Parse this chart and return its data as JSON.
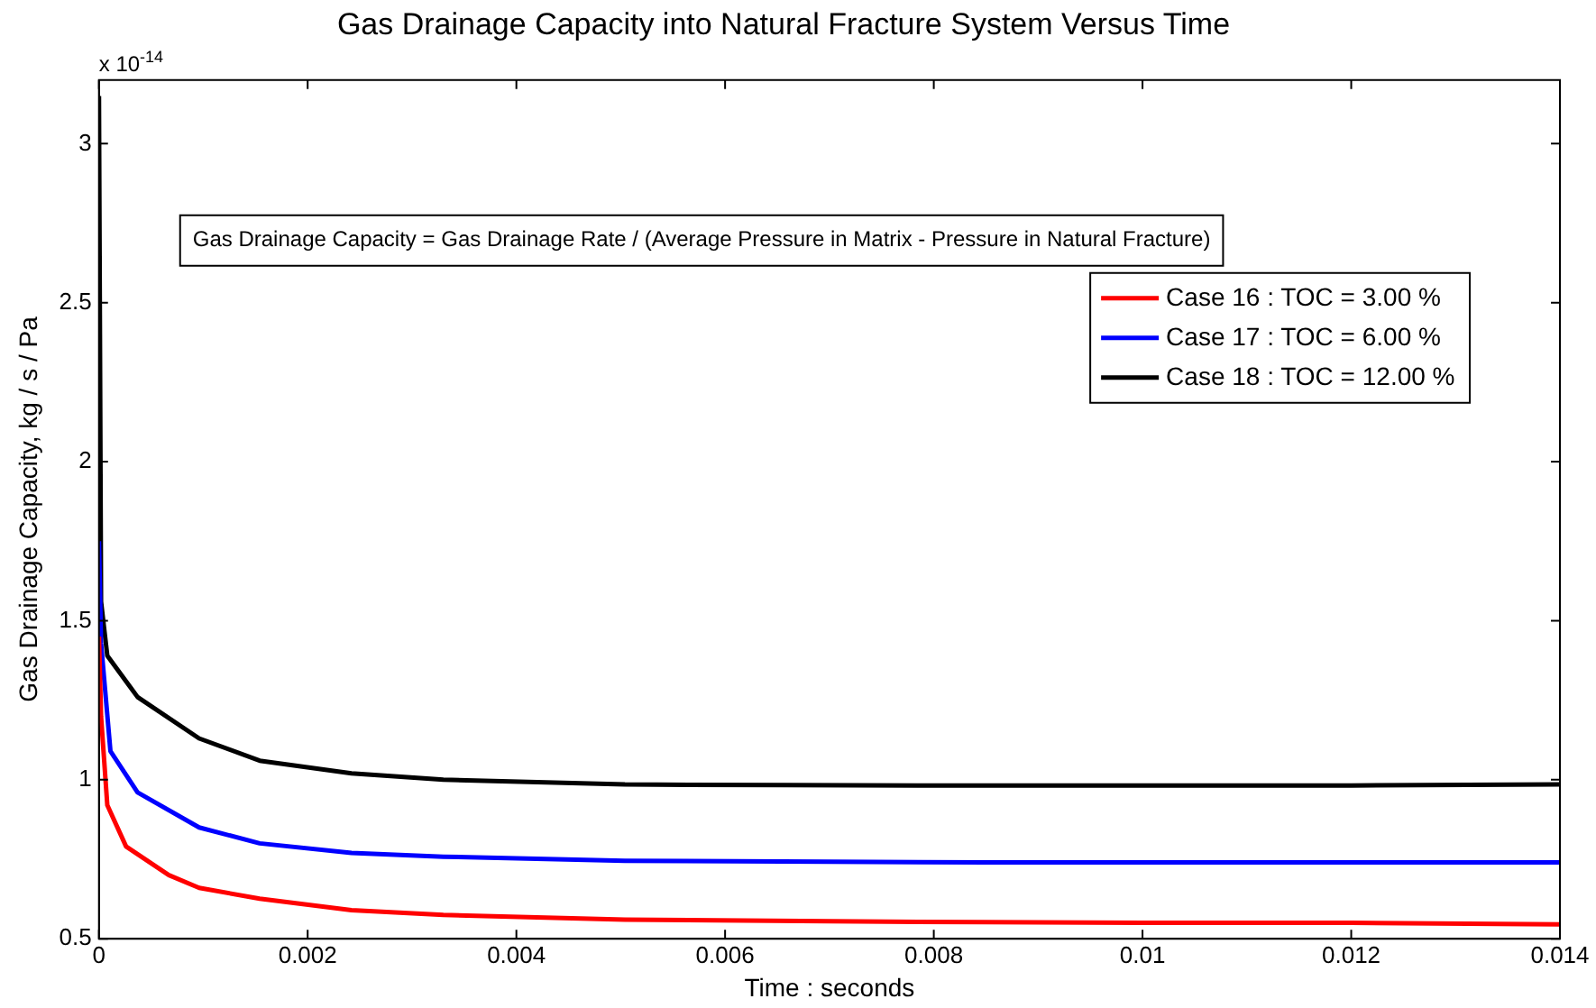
{
  "chart_data": {
    "type": "line",
    "title": "Gas Drainage Capacity into Natural Fracture System Versus Time",
    "xlabel": "Time : seconds",
    "ylabel": "Gas Drainage Capacity, kg / s / Pa",
    "annotations": [
      "x 10$^{-14}$",
      "Gas Drainage Capacity = Gas Drainage Rate / (Average Pressure in Matrix - Pressure in Natural Fracture)"
    ],
    "series": [
      {
        "name": "Case 16 : TOC = 3.00 %",
        "color": "#ff0000",
        "x": [
          0,
          2e-05,
          8e-05,
          0.00026,
          0.00067,
          0.00096,
          0.00154,
          0.00242,
          0.0033,
          0.00504,
          0.007,
          0.0085,
          0.01,
          0.012,
          0.014
        ],
        "values": [
          1.45,
          1.2,
          0.92,
          0.79,
          0.7,
          0.66,
          0.626,
          0.59,
          0.575,
          0.56,
          0.555,
          0.552,
          0.55,
          0.55,
          0.545
        ]
      },
      {
        "name": "Case 17 : TOC = 6.00 %",
        "color": "#0000ff",
        "x": [
          0,
          2e-05,
          0.00011,
          0.00037,
          0.00096,
          0.00154,
          0.00242,
          0.0033,
          0.00504,
          0.007,
          0.0085,
          0.01,
          0.012,
          0.014
        ],
        "values": [
          1.75,
          1.43,
          1.09,
          0.96,
          0.85,
          0.8,
          0.77,
          0.758,
          0.745,
          0.742,
          0.74,
          0.74,
          0.74,
          0.74
        ]
      },
      {
        "name": "Case 18 : TOC = 12.00 %",
        "color": "#000000",
        "x": [
          0,
          2e-05,
          8e-05,
          0.00037,
          0.00096,
          0.00154,
          0.00242,
          0.0033,
          0.00504,
          0.0066,
          0.008,
          0.01,
          0.012,
          0.014
        ],
        "values": [
          3.15,
          1.56,
          1.39,
          1.26,
          1.13,
          1.06,
          1.02,
          1.0,
          0.985,
          0.983,
          0.982,
          0.982,
          0.982,
          0.985
        ]
      }
    ],
    "xlim": [
      0,
      0.014
    ],
    "xticks": [
      0,
      0.002,
      0.004,
      0.006,
      0.008,
      0.01,
      0.012,
      0.014
    ],
    "ylim": [
      0.5,
      3.2
    ],
    "yticks": [
      0.5,
      1,
      1.5,
      2,
      2.5,
      3
    ],
    "legend": "top right",
    "grid": false,
    "marker": "none",
    "line_style": "solid"
  }
}
